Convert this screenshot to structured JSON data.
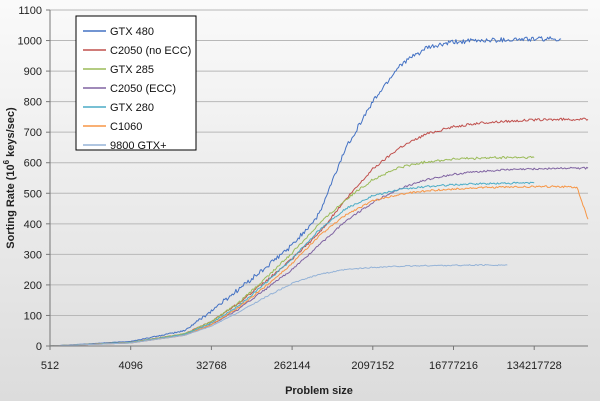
{
  "chart_data": {
    "type": "line",
    "title": "",
    "xlabel": "Problem size",
    "ylabel_parts": {
      "prefix": "Sorting Rate (10",
      "superscript": "6",
      "suffix": " keys/sec)"
    },
    "x_scale": "log2",
    "xlim": [
      512,
      536870912
    ],
    "ylim": [
      0,
      1100
    ],
    "x_ticks": [
      {
        "value": 512,
        "label": "512"
      },
      {
        "value": 4096,
        "label": "4096"
      },
      {
        "value": 32768,
        "label": "32768"
      },
      {
        "value": 262144,
        "label": "262144"
      },
      {
        "value": 2097152,
        "label": "2097152"
      },
      {
        "value": 16777216,
        "label": "16777216"
      },
      {
        "value": 134217728,
        "label": "134217728"
      }
    ],
    "y_ticks": [
      0,
      100,
      200,
      300,
      400,
      500,
      600,
      700,
      800,
      900,
      1000,
      1100
    ],
    "grid": "horizontal",
    "legend_position": "top-left",
    "series": [
      {
        "name": "GTX 480",
        "color": "#4472c4",
        "noise": 8,
        "x": [
          512,
          4096,
          16384,
          32768,
          65536,
          131072,
          262144,
          524288,
          1048576,
          2097152,
          4194304,
          8388608,
          16777216,
          33554432,
          67108864,
          134217728,
          268435456
        ],
        "y": [
          0,
          15,
          50,
          115,
          185,
          255,
          330,
          430,
          650,
          800,
          920,
          975,
          995,
          1000,
          1003,
          1005,
          1005
        ]
      },
      {
        "name": "C2050 (no ECC)",
        "color": "#c0504d",
        "noise": 4,
        "x": [
          512,
          4096,
          16384,
          32768,
          65536,
          131072,
          262144,
          524288,
          1048576,
          2097152,
          4194304,
          8388608,
          16777216,
          33554432,
          67108864,
          134217728,
          268435456,
          536870912
        ],
        "y": [
          0,
          12,
          40,
          80,
          140,
          210,
          285,
          370,
          480,
          580,
          650,
          695,
          718,
          730,
          736,
          740,
          742,
          742
        ]
      },
      {
        "name": "GTX 285",
        "color": "#9bbb59",
        "noise": 4,
        "x": [
          512,
          4096,
          16384,
          32768,
          65536,
          131072,
          262144,
          524288,
          1048576,
          2097152,
          4194304,
          8388608,
          16777216,
          33554432,
          67108864,
          134217728
        ],
        "y": [
          0,
          12,
          40,
          80,
          140,
          220,
          305,
          400,
          480,
          545,
          585,
          603,
          612,
          615,
          617,
          617
        ]
      },
      {
        "name": "C2050 (ECC)",
        "color": "#8064a2",
        "noise": 3,
        "x": [
          512,
          4096,
          16384,
          32768,
          65536,
          131072,
          262144,
          524288,
          1048576,
          2097152,
          4194304,
          8388608,
          16777216,
          33554432,
          67108864,
          134217728,
          268435456,
          536870912
        ],
        "y": [
          0,
          10,
          35,
          70,
          120,
          185,
          250,
          330,
          410,
          470,
          515,
          545,
          562,
          572,
          577,
          580,
          582,
          582
        ]
      },
      {
        "name": "GTX 280",
        "color": "#4bacc6",
        "noise": 3,
        "x": [
          512,
          4096,
          16384,
          32768,
          65536,
          131072,
          262144,
          524288,
          1048576,
          2097152,
          4194304,
          8388608,
          16777216,
          33554432,
          67108864,
          134217728
        ],
        "y": [
          0,
          11,
          38,
          75,
          130,
          205,
          285,
          380,
          450,
          492,
          512,
          522,
          528,
          531,
          533,
          534
        ]
      },
      {
        "name": "C1060",
        "color": "#f79646",
        "noise": 3,
        "x": [
          512,
          4096,
          16384,
          32768,
          65536,
          131072,
          262144,
          524288,
          1048576,
          2097152,
          4194304,
          8388608,
          16777216,
          33554432,
          67108864,
          134217728,
          268435456,
          402653184,
          536870912
        ],
        "y": [
          0,
          10,
          35,
          70,
          125,
          195,
          270,
          360,
          430,
          475,
          497,
          508,
          514,
          518,
          520,
          522,
          522,
          520,
          415
        ]
      },
      {
        "name": "9800 GTX+",
        "color": "#95b3d7",
        "noise": 2,
        "x": [
          512,
          4096,
          16384,
          32768,
          65536,
          131072,
          262144,
          524288,
          1048576,
          2097152,
          4194304,
          8388608,
          16777216,
          33554432,
          67108864
        ],
        "y": [
          0,
          10,
          35,
          65,
          110,
          160,
          205,
          235,
          250,
          257,
          261,
          263,
          264,
          265,
          265
        ]
      }
    ]
  }
}
